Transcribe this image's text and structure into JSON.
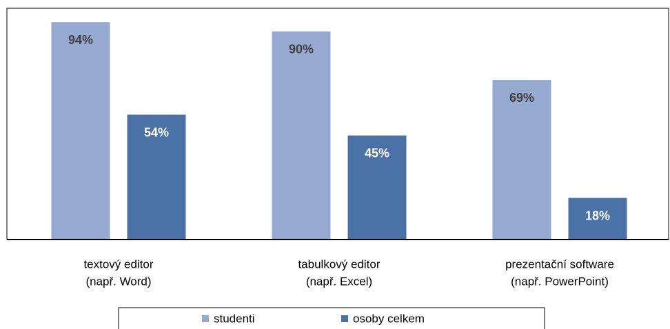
{
  "chart_data": {
    "type": "bar",
    "categories": [
      [
        "textový editor",
        "(např. Word)"
      ],
      [
        "tabulkový editor",
        "(např. Excel)"
      ],
      [
        "prezentační software",
        "(např. PowerPoint)"
      ]
    ],
    "series": [
      {
        "name": "studenti",
        "color": "#95a9d1",
        "values": [
          94,
          90,
          69
        ],
        "value_labels": [
          "94%",
          "90%",
          "69%"
        ]
      },
      {
        "name": "osoby celkem",
        "color": "#4a72a6",
        "values": [
          54,
          45,
          18
        ],
        "value_labels": [
          "54%",
          "45%",
          "18%"
        ]
      }
    ],
    "ylim": [
      0,
      100
    ]
  }
}
